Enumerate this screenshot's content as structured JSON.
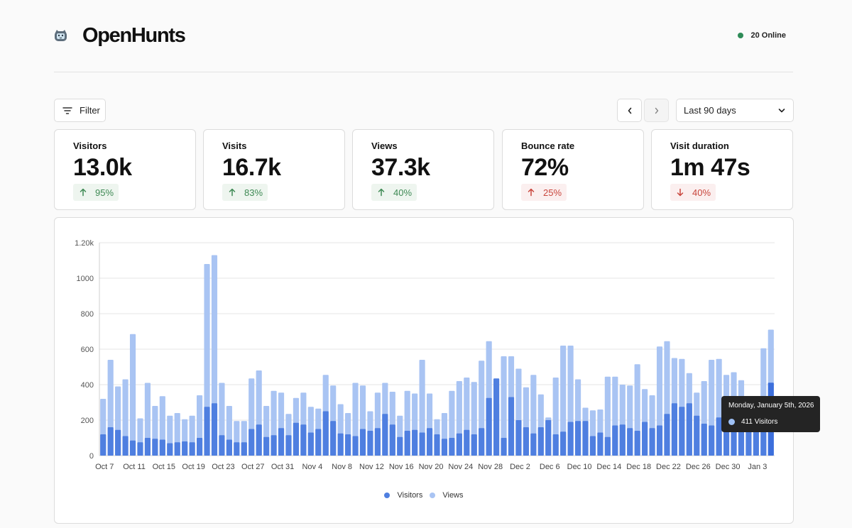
{
  "brand": {
    "name": "OpenHunts",
    "logo_icon": "cat-logo-icon"
  },
  "status": {
    "online_text": "20 Online",
    "dot_color": "#2e8b57"
  },
  "toolbar": {
    "filter_label": "Filter",
    "filter_icon": "filter-lines-icon",
    "prev_icon": "chevron-left-icon",
    "next_icon": "chevron-right-icon",
    "date_range": "Last 90 days",
    "date_range_icon": "chevron-down-icon"
  },
  "metrics": [
    {
      "label": "Visitors",
      "value": "13.0k",
      "delta": "95%",
      "direction": "up"
    },
    {
      "label": "Visits",
      "value": "16.7k",
      "delta": "83%",
      "direction": "up"
    },
    {
      "label": "Views",
      "value": "37.3k",
      "delta": "40%",
      "direction": "up"
    },
    {
      "label": "Bounce rate",
      "value": "72%",
      "delta": "25%",
      "direction": "up-bad"
    },
    {
      "label": "Visit duration",
      "value": "1m 47s",
      "delta": "40%",
      "direction": "down"
    }
  ],
  "tooltip": {
    "title": "Monday, January 5th, 2026",
    "value_text": "411 Visitors"
  },
  "chart_data": {
    "type": "bar",
    "stacked": "overlay",
    "ylim": [
      0,
      1200
    ],
    "y_ticks": [
      "0",
      "200",
      "400",
      "600",
      "800",
      "1000",
      "1.20k"
    ],
    "y_tick_values": [
      0,
      200,
      400,
      600,
      800,
      1000,
      1200
    ],
    "x_tick_labels": [
      "Oct 7",
      "Oct 11",
      "Oct 15",
      "Oct 19",
      "Oct 23",
      "Oct 27",
      "Oct 31",
      "Nov 4",
      "Nov 8",
      "Nov 12",
      "Nov 16",
      "Nov 20",
      "Nov 24",
      "Nov 28",
      "Dec 2",
      "Dec 6",
      "Dec 10",
      "Dec 14",
      "Dec 18",
      "Dec 22",
      "Dec 26",
      "Dec 30",
      "Jan 3"
    ],
    "x_tick_index_step": 4,
    "highlight_index": 90,
    "series": [
      {
        "name": "Visitors",
        "color": "#4f7fe0",
        "highlight_color": "#3c6fdc",
        "values": [
          120,
          160,
          145,
          110,
          85,
          75,
          100,
          95,
          90,
          70,
          75,
          80,
          75,
          100,
          275,
          295,
          115,
          90,
          75,
          75,
          150,
          175,
          105,
          115,
          155,
          115,
          185,
          175,
          130,
          150,
          250,
          195,
          125,
          120,
          110,
          150,
          140,
          155,
          235,
          175,
          105,
          140,
          145,
          130,
          155,
          120,
          95,
          100,
          125,
          145,
          120,
          155,
          325,
          435,
          100,
          330,
          200,
          160,
          125,
          160,
          200,
          120,
          135,
          190,
          195,
          195,
          110,
          130,
          105,
          170,
          175,
          155,
          140,
          190,
          155,
          170,
          235,
          295,
          275,
          295,
          225,
          180,
          170,
          215,
          200,
          215,
          215,
          205,
          195,
          215,
          411
        ]
      },
      {
        "name": "Views",
        "color": "#a9c4f3",
        "values": [
          320,
          540,
          390,
          430,
          685,
          210,
          410,
          280,
          335,
          225,
          240,
          205,
          225,
          340,
          1080,
          1130,
          410,
          280,
          195,
          195,
          435,
          480,
          280,
          365,
          355,
          235,
          325,
          355,
          275,
          265,
          455,
          395,
          290,
          240,
          410,
          395,
          250,
          355,
          410,
          360,
          225,
          365,
          350,
          540,
          350,
          205,
          240,
          365,
          420,
          440,
          415,
          535,
          645,
          295,
          560,
          560,
          490,
          385,
          455,
          345,
          215,
          440,
          620,
          620,
          430,
          270,
          255,
          260,
          445,
          445,
          400,
          395,
          515,
          375,
          340,
          615,
          645,
          550,
          545,
          465,
          355,
          420,
          540,
          545,
          455,
          470,
          425,
          0,
          0,
          605,
          710
        ]
      }
    ]
  }
}
